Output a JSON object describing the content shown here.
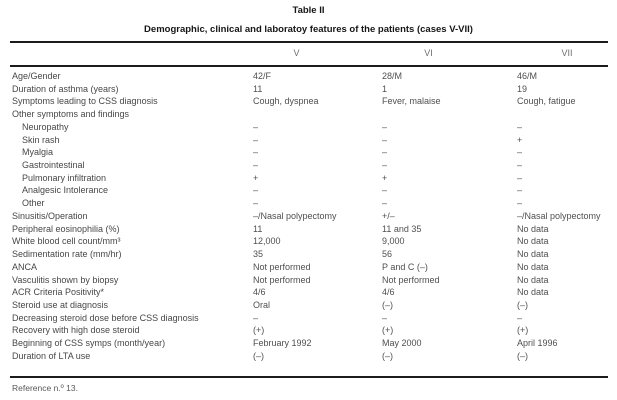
{
  "table": {
    "title": "Table II",
    "subtitle": "Demographic, clinical and laboratoy features of the patients (cases V-VII)",
    "columns": [
      "V",
      "VI",
      "VII"
    ],
    "rows": [
      {
        "label": "Age/Gender",
        "indent": false,
        "values": [
          "42/F",
          "28/M",
          "46/M"
        ]
      },
      {
        "label": "Duration of asthma (years)",
        "indent": false,
        "values": [
          "11",
          "1",
          "19"
        ]
      },
      {
        "label": "Symptoms leading to CSS diagnosis",
        "indent": false,
        "values": [
          "Cough, dyspnea",
          "Fever, malaise",
          "Cough, fatigue"
        ]
      },
      {
        "label": "Other symptoms and findings",
        "indent": false,
        "values": [
          "",
          "",
          ""
        ]
      },
      {
        "label": "Neuropathy",
        "indent": true,
        "values": [
          "–",
          "–",
          "–"
        ]
      },
      {
        "label": "Skin rash",
        "indent": true,
        "values": [
          "–",
          "–",
          "+"
        ]
      },
      {
        "label": "Myalgia",
        "indent": true,
        "values": [
          "–",
          "–",
          "–"
        ]
      },
      {
        "label": "Gastrointestinal",
        "indent": true,
        "values": [
          "–",
          "–",
          "–"
        ]
      },
      {
        "label": "Pulmonary infiltration",
        "indent": true,
        "values": [
          "+",
          "+",
          "–"
        ]
      },
      {
        "label": "Analgesic Intolerance",
        "indent": true,
        "values": [
          "–",
          "–",
          "–"
        ]
      },
      {
        "label": "Other",
        "indent": true,
        "values": [
          "–",
          "–",
          "–"
        ]
      },
      {
        "label": "Sinusitis/Operation",
        "indent": false,
        "values": [
          "–/Nasal polypectomy",
          "+/–",
          "–/Nasal polypectomy"
        ]
      },
      {
        "label": "Peripheral eosinophilia (%)",
        "indent": false,
        "values": [
          "11",
          "11 and 35",
          "No data"
        ]
      },
      {
        "label": "White blood cell count/mm³",
        "indent": false,
        "values": [
          "12,000",
          "9,000",
          "No data"
        ]
      },
      {
        "label": "Sedimentation rate (mm/hr)",
        "indent": false,
        "values": [
          "35",
          "56",
          "No data"
        ]
      },
      {
        "label": "ANCA",
        "indent": false,
        "values": [
          "Not performed",
          "P and C (–)",
          "No data"
        ]
      },
      {
        "label": "Vasculitis shown by biopsy",
        "indent": false,
        "values": [
          "Not performed",
          "Not performed",
          "No data"
        ]
      },
      {
        "label": "ACR Criteria Positivity*",
        "indent": false,
        "values": [
          "4/6",
          "4/6",
          "No data"
        ]
      },
      {
        "label": "Steroid use at diagnosis",
        "indent": false,
        "values": [
          "Oral",
          "(–)",
          "(–)"
        ]
      },
      {
        "label": "Decreasing steroid dose before CSS diagnosis",
        "indent": false,
        "values": [
          "–",
          "–",
          "–"
        ]
      },
      {
        "label": "Recovery with high dose steroid",
        "indent": false,
        "values": [
          "(+)",
          "(+)",
          "(+)"
        ]
      },
      {
        "label": "Beginning of CSS symps (month/year)",
        "indent": false,
        "values": [
          "February 1992",
          "May 2000",
          "April 1996"
        ]
      },
      {
        "label": "Duration of LTA use",
        "indent": false,
        "values": [
          "(–)",
          "(–)",
          "(–)"
        ]
      }
    ],
    "footer": "Reference n.º 13."
  }
}
